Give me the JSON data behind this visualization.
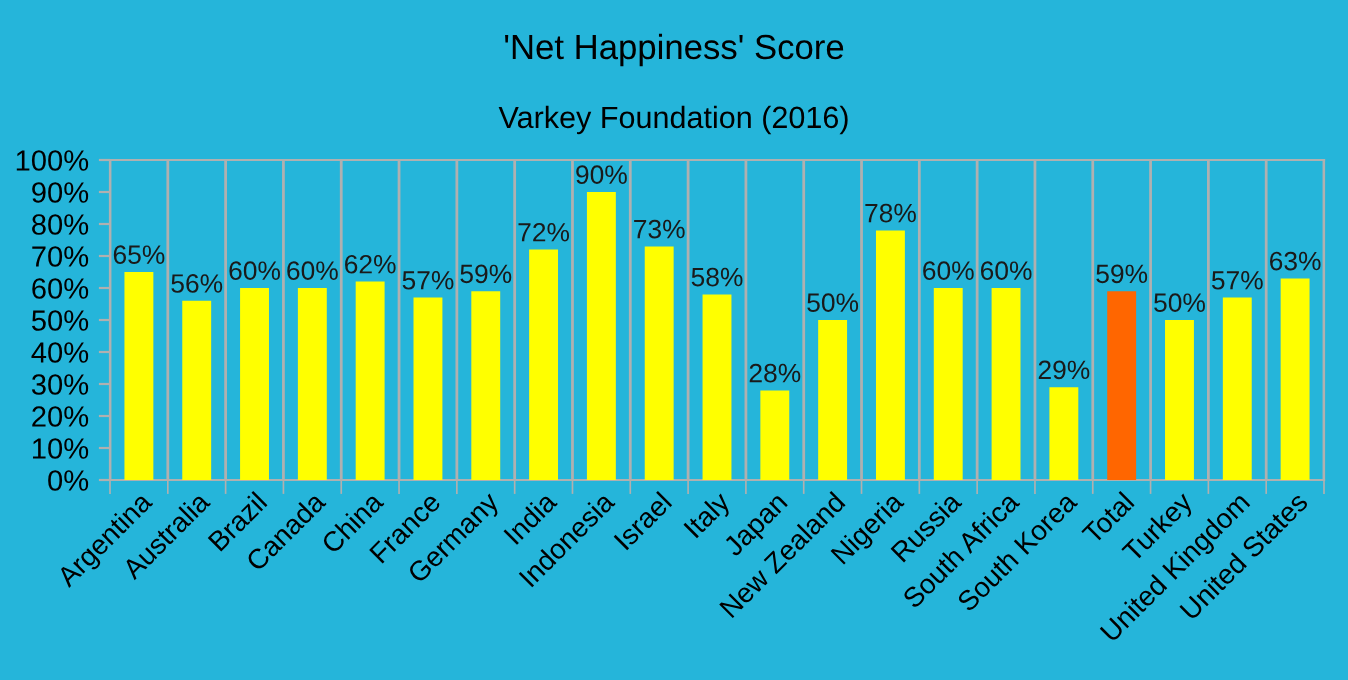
{
  "chart_data": {
    "type": "bar",
    "title": "'Net Happiness' Score",
    "subtitle": "Varkey Foundation (2016)",
    "categories": [
      "Argentina",
      "Australia",
      "Brazil",
      "Canada",
      "China",
      "France",
      "Germany",
      "India",
      "Indonesia",
      "Israel",
      "Italy",
      "Japan",
      "New Zealand",
      "Nigeria",
      "Russia",
      "South Africa",
      "South Korea",
      "Total",
      "Turkey",
      "United Kingdom",
      "United States"
    ],
    "values": [
      65,
      56,
      60,
      60,
      62,
      57,
      59,
      72,
      90,
      73,
      58,
      28,
      50,
      78,
      60,
      60,
      29,
      59,
      50,
      57,
      63
    ],
    "colors": [
      "#ffff00",
      "#ffff00",
      "#ffff00",
      "#ffff00",
      "#ffff00",
      "#ffff00",
      "#ffff00",
      "#ffff00",
      "#ffff00",
      "#ffff00",
      "#ffff00",
      "#ffff00",
      "#ffff00",
      "#ffff00",
      "#ffff00",
      "#ffff00",
      "#ffff00",
      "#ff6600",
      "#ffff00",
      "#ffff00",
      "#ffff00"
    ],
    "value_labels": [
      "65%",
      "56%",
      "60%",
      "60%",
      "62%",
      "57%",
      "59%",
      "72%",
      "90%",
      "73%",
      "58%",
      "28%",
      "50%",
      "78%",
      "60%",
      "60%",
      "29%",
      "59%",
      "50%",
      "57%",
      "63%"
    ],
    "ylim": [
      0,
      100
    ],
    "yticks": [
      {
        "value": 0,
        "label": "0%"
      },
      {
        "value": 10,
        "label": "10%"
      },
      {
        "value": 20,
        "label": "20%"
      },
      {
        "value": 30,
        "label": "30%"
      },
      {
        "value": 40,
        "label": "40%"
      },
      {
        "value": 50,
        "label": "50%"
      },
      {
        "value": 60,
        "label": "60%"
      },
      {
        "value": 70,
        "label": "70%"
      },
      {
        "value": 80,
        "label": "80%"
      },
      {
        "value": 90,
        "label": "90%"
      },
      {
        "value": 100,
        "label": "100%"
      }
    ],
    "grid": "x",
    "legend": false
  }
}
